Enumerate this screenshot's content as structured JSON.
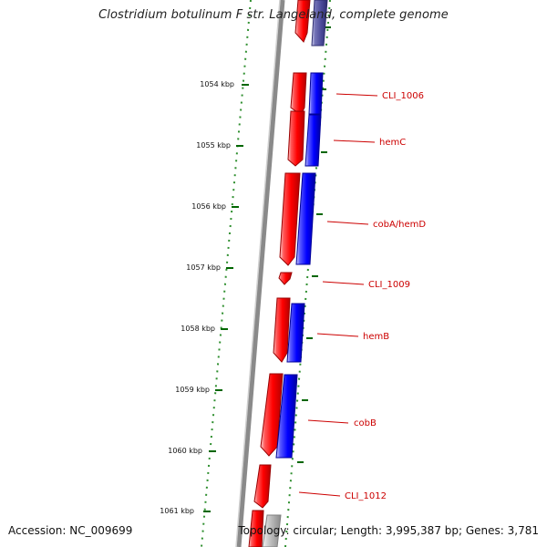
{
  "title": "Clostridium botulinum F str. Langeland, complete genome",
  "accession": "Accession: NC_009699",
  "summary": "Topology: circular; Length: 3,995,387 bp; Genes: 3,781",
  "ticks": [
    {
      "label": "1054 kbp"
    },
    {
      "label": "1055 kbp"
    },
    {
      "label": "1056 kbp"
    },
    {
      "label": "1057 kbp"
    },
    {
      "label": "1058 kbp"
    },
    {
      "label": "1059 kbp"
    },
    {
      "label": "1060 kbp"
    },
    {
      "label": "1061 kbp"
    }
  ],
  "genes": [
    {
      "label": "CLI_1006"
    },
    {
      "label": "hemC"
    },
    {
      "label": "cobA/hemD"
    },
    {
      "label": "CLI_1009"
    },
    {
      "label": "hemB"
    },
    {
      "label": "cobB"
    },
    {
      "label": "CLI_1012"
    }
  ],
  "colors": {
    "forward_feature": "#ff0000",
    "cds_track": "#0000ff",
    "prior_feature": "#4b4b9a",
    "backbone": "#808080",
    "tick_marks": "#006600",
    "gene_label": "#cc0000"
  }
}
